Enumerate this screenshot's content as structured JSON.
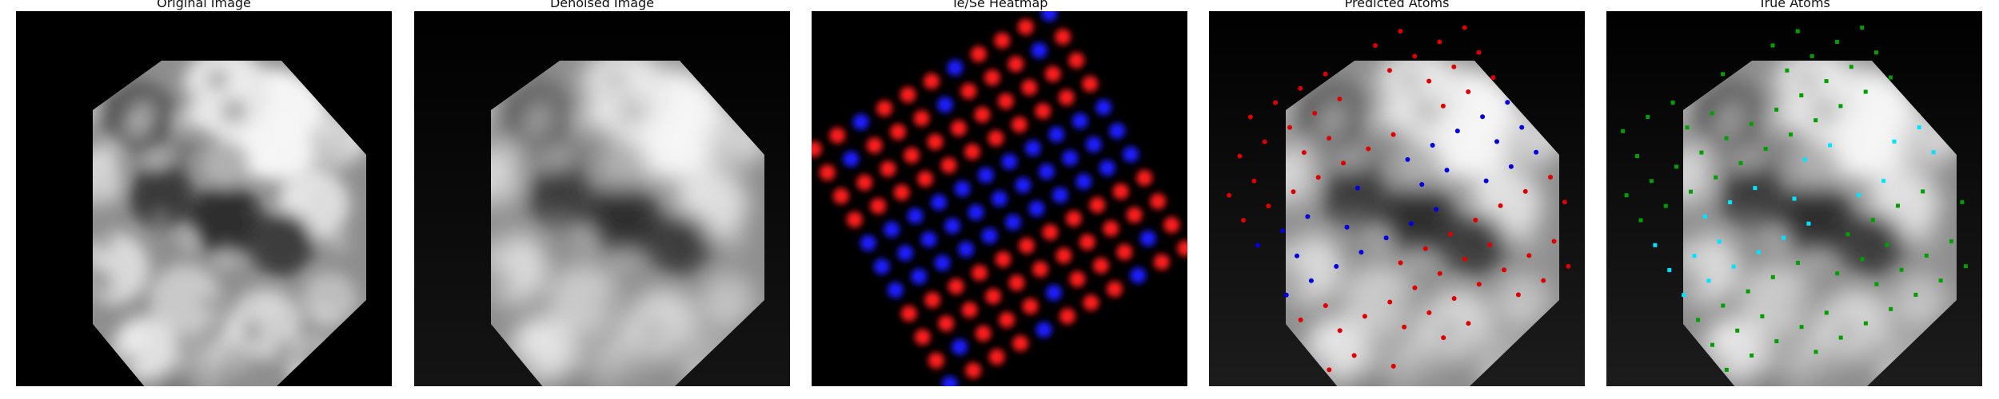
{
  "panels": [
    {
      "id": "original",
      "title": "Original Image",
      "icon": "grayscale-image"
    },
    {
      "id": "denoised",
      "title": "Denoised Image",
      "icon": "grayscale-image"
    },
    {
      "id": "heatmap",
      "title": "Te/Se Heatmap",
      "icon": "heatmap-image"
    },
    {
      "id": "predicted",
      "title": "Predicted Atoms",
      "icon": "grayscale-image-with-markers"
    },
    {
      "id": "true",
      "title": "True Atoms",
      "icon": "grayscale-image-with-markers"
    }
  ],
  "colors": {
    "te": "#ff1a1a",
    "se": "#1a1aff",
    "predicted_red": "#e00000",
    "predicted_blue": "#0000e0",
    "true_green": "#00a000",
    "true_cyan": "#00e5ff"
  }
}
